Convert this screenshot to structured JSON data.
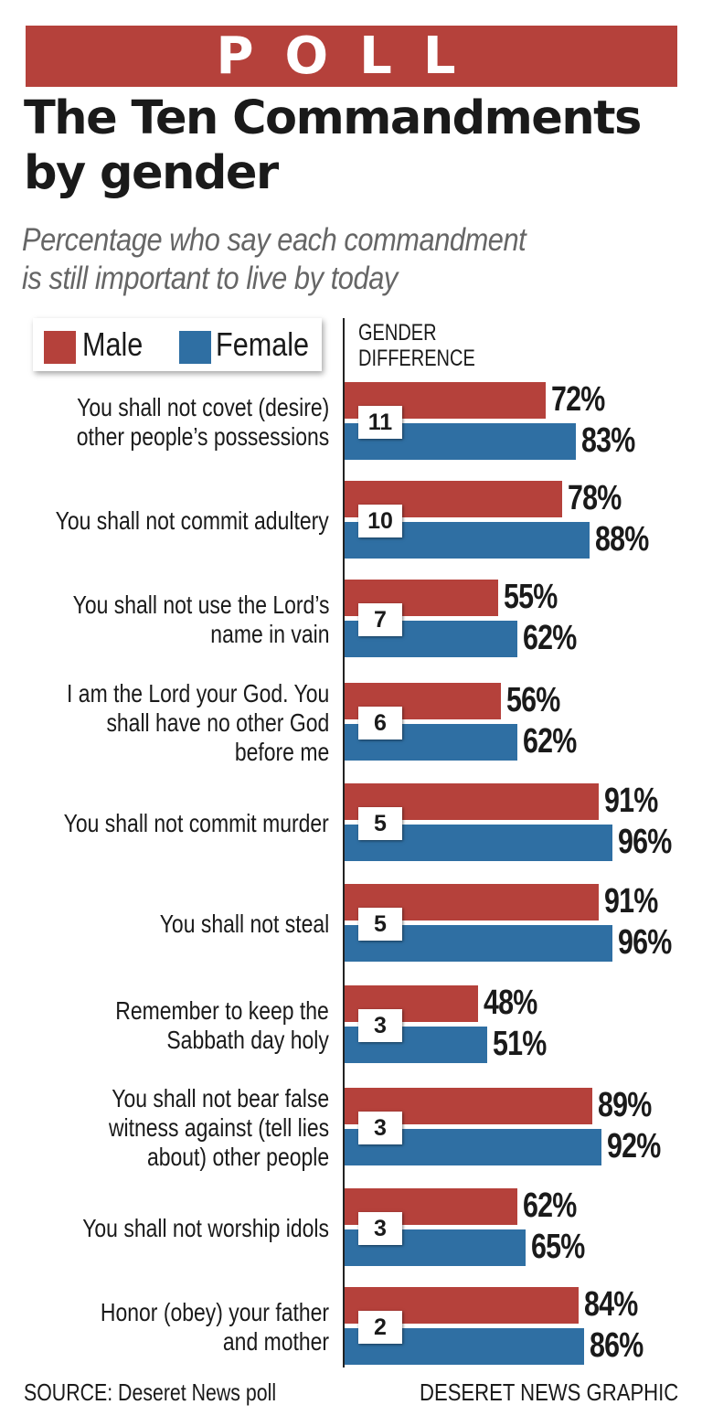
{
  "banner": "POLL",
  "title_line1": "The Ten Commandments",
  "title_line2": "by gender",
  "subtitle_line1": "Percentage who say each commandment",
  "subtitle_line2": "is still important to live by today",
  "legend": {
    "male": "Male",
    "female": "Female"
  },
  "diff_header_line1": "GENDER",
  "diff_header_line2": "DIFFERENCE",
  "source": "SOURCE: Deseret News poll",
  "credit": "DESERET NEWS GRAPHIC",
  "colors": {
    "male": "#b5413b",
    "female": "#2f6fa3"
  },
  "chart_data": {
    "type": "bar",
    "title": "The Ten Commandments by gender",
    "subtitle": "Percentage who say each commandment is still important to live by today",
    "unit": "%",
    "categories": [
      [
        "You shall not covet (desire)",
        "other people’s possessions"
      ],
      [
        "You shall not commit adultery"
      ],
      [
        "You shall not use the Lord’s",
        "name in vain"
      ],
      [
        "I am the Lord your God. You",
        "shall have no other God",
        "before me"
      ],
      [
        "You shall not commit murder"
      ],
      [
        "You shall not steal"
      ],
      [
        "Remember to keep the",
        "Sabbath day holy"
      ],
      [
        "You shall not bear false",
        "witness against (tell lies",
        "about) other people"
      ],
      [
        "You shall not worship idols"
      ],
      [
        "Honor (obey) your father",
        "and mother"
      ]
    ],
    "series": [
      {
        "name": "Male",
        "values": [
          72,
          78,
          55,
          56,
          91,
          91,
          48,
          89,
          62,
          84
        ]
      },
      {
        "name": "Female",
        "values": [
          83,
          88,
          62,
          62,
          96,
          96,
          51,
          92,
          65,
          86
        ]
      }
    ],
    "gender_difference": [
      11,
      10,
      7,
      6,
      5,
      5,
      3,
      3,
      3,
      2
    ],
    "legend": "top-left"
  }
}
